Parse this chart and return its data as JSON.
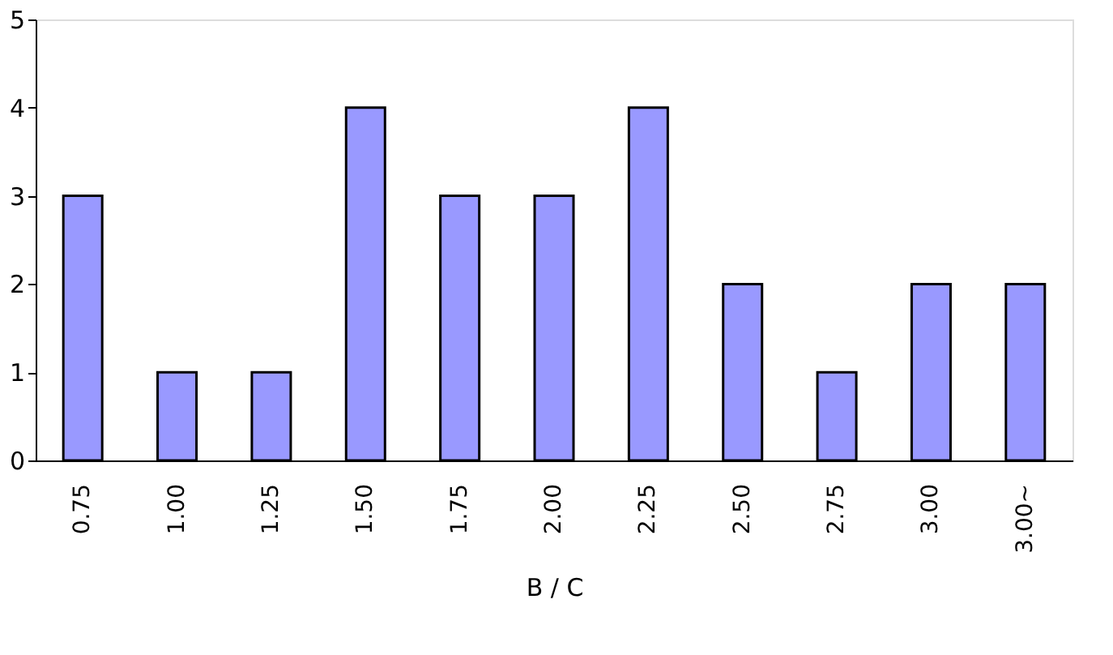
{
  "chart_data": {
    "type": "bar",
    "xlabel": "B / C",
    "categories": [
      "0.75",
      "1.00",
      "1.25",
      "1.50",
      "1.75",
      "2.00",
      "2.25",
      "2.50",
      "2.75",
      "3.00",
      "3.00~"
    ],
    "values": [
      3,
      1,
      1,
      4,
      3,
      3,
      4,
      2,
      1,
      2,
      2
    ],
    "color": "#9999ff",
    "ylim": [
      0,
      5
    ],
    "yticks": [
      0,
      1,
      2,
      3,
      4,
      5
    ],
    "grid": false
  }
}
